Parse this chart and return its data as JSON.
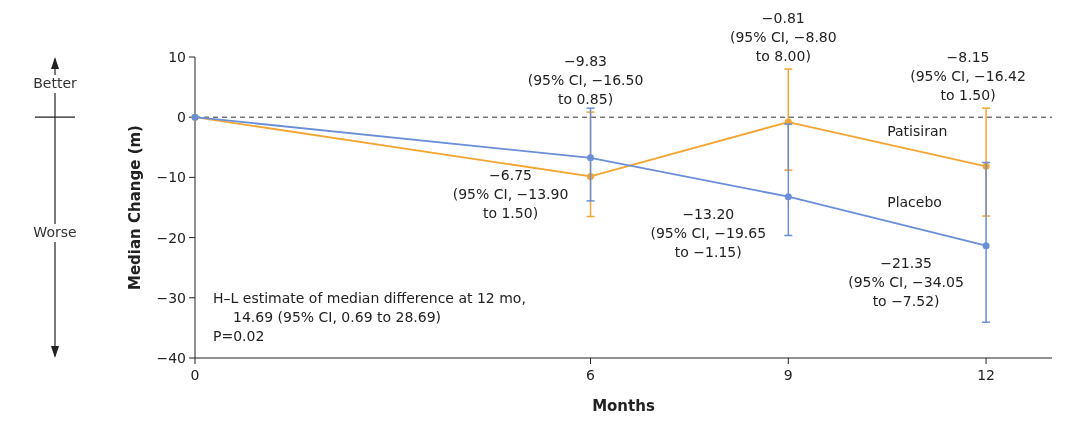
{
  "chart_data": {
    "type": "line",
    "xlabel": "Months",
    "ylabel": "Median Change (m)",
    "x": [
      0,
      6,
      9,
      12
    ],
    "xlim": [
      0,
      13
    ],
    "xticks": [
      0,
      6,
      9,
      12
    ],
    "ylim": [
      -40,
      10
    ],
    "yticks": [
      {
        "value": -40,
        "label": "−40"
      },
      {
        "value": -30,
        "label": "−30"
      },
      {
        "value": -20,
        "label": "−20"
      },
      {
        "value": -10,
        "label": "−10"
      },
      0,
      10
    ],
    "series": [
      {
        "name": "Patisiran",
        "color": "#f3a532",
        "values": [
          0,
          -9.83,
          -0.81,
          -8.15
        ],
        "errors": [
          null,
          [
            -16.5,
            0.85
          ],
          [
            -8.8,
            8.0
          ],
          [
            -16.42,
            1.5
          ]
        ]
      },
      {
        "name": "Placebo",
        "color": "#6a8fd8",
        "values": [
          0,
          -6.75,
          -13.2,
          -21.35
        ],
        "errors": [
          null,
          [
            -13.9,
            1.5
          ],
          [
            -19.65,
            -1.15
          ],
          [
            -34.05,
            -7.52
          ]
        ]
      }
    ],
    "ref_lines": [
      {
        "axis": "y",
        "value": 0,
        "line_style": "dashed",
        "color": "#333333"
      }
    ],
    "marker": "circle",
    "legend": false,
    "grid": false,
    "annotations": [
      "Better",
      "Worse",
      "H–L estimate of median difference at 12 mo,\n14.69 (95% CI, 0.69 to 28.69)\nP=0.02",
      {
        "text": "−9.83\n(95% CI, −16.50\nto 0.85)",
        "x": 6,
        "y": 0.85
      },
      {
        "text": "−0.81\n(95% CI, −8.80\nto 8.00)",
        "x": 9,
        "y": 8.0
      },
      {
        "text": "−8.15\n(95% CI, −16.42\nto 1.50)",
        "x": 12,
        "y": 1.5
      },
      {
        "text": "−6.75\n(95% CI, −13.90\nto 1.50)",
        "x": 6,
        "y": -6.75
      },
      {
        "text": "−13.20\n(95% CI, −19.65\nto −1.15)",
        "x": 9,
        "y": -13.2
      },
      {
        "text": "−21.35\n(95% CI, −34.05\nto −7.52)",
        "x": 12,
        "y": -21.35
      }
    ]
  }
}
